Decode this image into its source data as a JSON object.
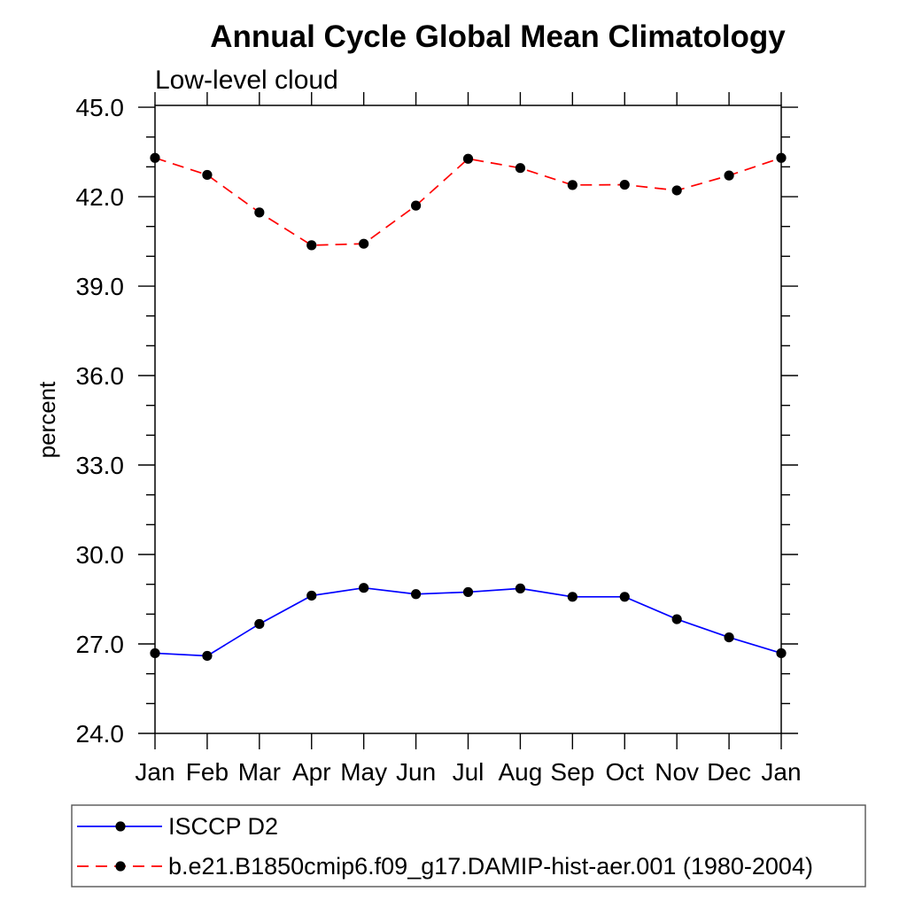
{
  "chart_data": {
    "type": "line",
    "title": "Annual Cycle Global Mean Climatology",
    "subtitle": "Low-level cloud",
    "ylabel": "percent",
    "categories": [
      "Jan",
      "Feb",
      "Mar",
      "Apr",
      "May",
      "Jun",
      "Jul",
      "Aug",
      "Sep",
      "Oct",
      "Nov",
      "Dec",
      "Jan"
    ],
    "series": [
      {
        "name": "ISCCP D2",
        "color": "#0000ff",
        "line_style": "solid",
        "marker": "filled-circle",
        "marker_color": "#000000",
        "values": [
          26.69,
          26.6,
          27.67,
          28.62,
          28.88,
          28.67,
          28.74,
          28.86,
          28.58,
          28.58,
          27.83,
          27.22,
          26.69
        ]
      },
      {
        "name": "b.e21.B1850cmip6.f09_g17.DAMIP-hist-aer.001 (1980-2004)",
        "color": "#ff0000",
        "line_style": "dashed",
        "marker": "filled-circle",
        "marker_color": "#000000",
        "values": [
          43.3,
          42.73,
          41.47,
          40.37,
          40.42,
          41.7,
          43.27,
          42.96,
          42.39,
          42.4,
          42.21,
          42.71,
          43.3
        ]
      }
    ],
    "ylim": [
      24.0,
      45.06
    ],
    "yticks": [
      24,
      27,
      30,
      33,
      36,
      39,
      42,
      45
    ],
    "ytick_labels": [
      "24.0",
      "27.0",
      "30.0",
      "33.0",
      "36.0",
      "39.0",
      "42.0",
      "45.0"
    ],
    "minor_ytick_step": 1,
    "grid": false,
    "axis_color": "#000000",
    "legend_position": "bottom-left"
  }
}
